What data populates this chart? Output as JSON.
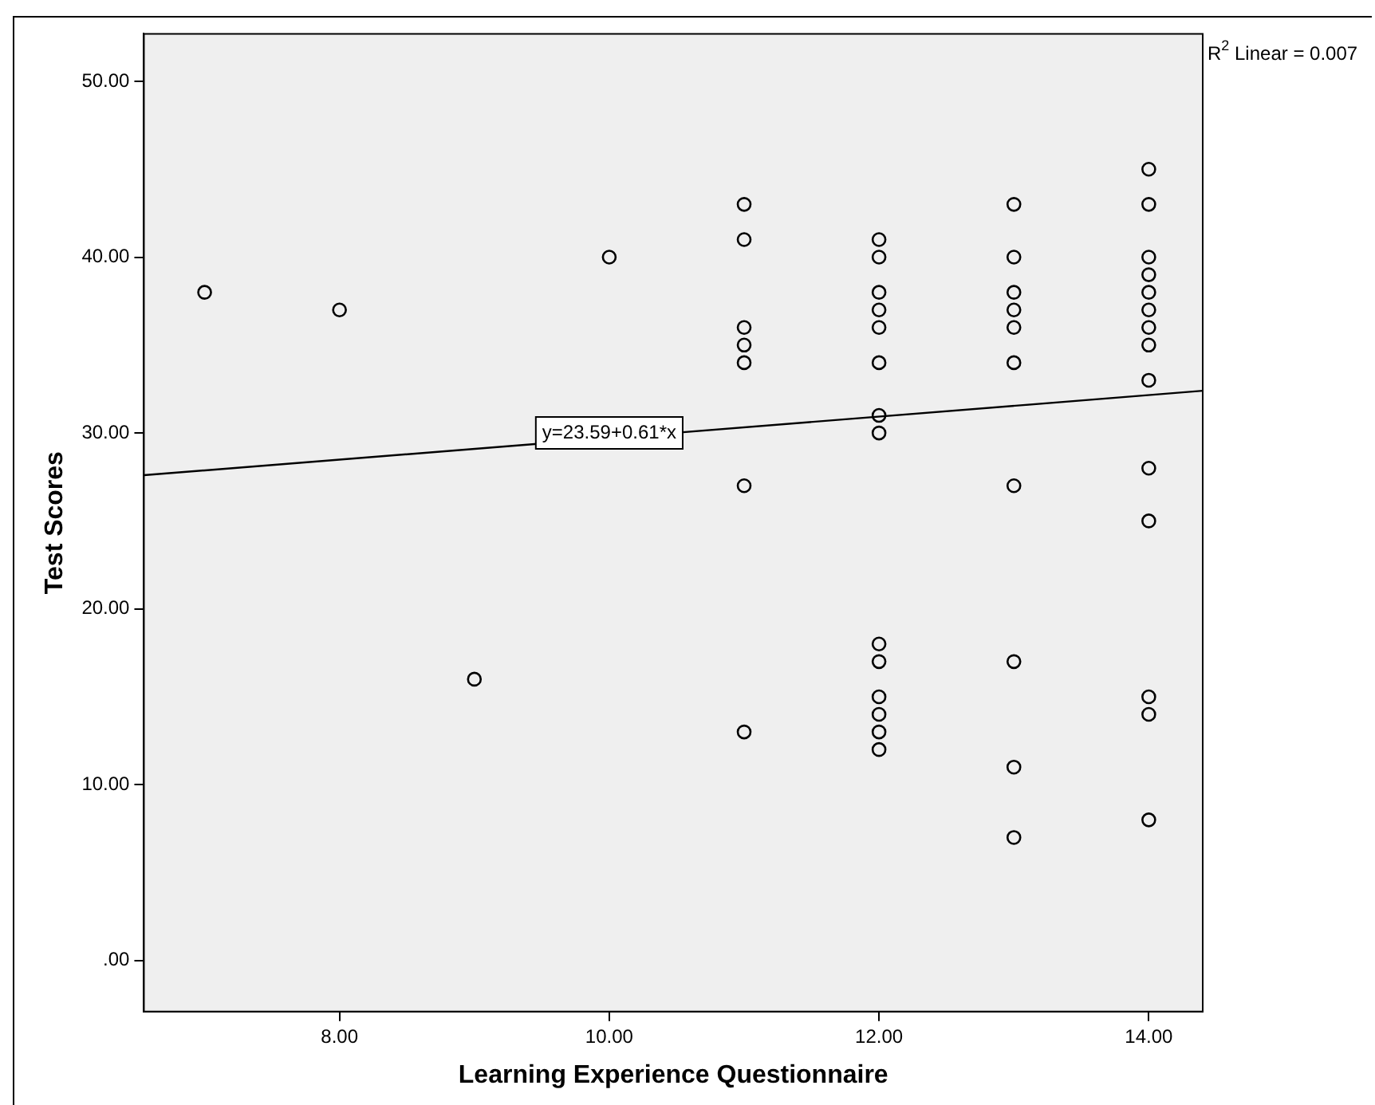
{
  "chart_data": {
    "type": "scatter",
    "xlabel": "Learning Experience Questionnaire",
    "ylabel": "Test Scores",
    "xlim": [
      6.55,
      14.4
    ],
    "ylim": [
      -2.9,
      52.7
    ],
    "xticks": [
      {
        "value": 8,
        "label": "8.00"
      },
      {
        "value": 10,
        "label": "10.00"
      },
      {
        "value": 12,
        "label": "12.00"
      },
      {
        "value": 14,
        "label": "14.00"
      }
    ],
    "yticks": [
      {
        "value": 0,
        "label": ".00"
      },
      {
        "value": 10,
        "label": "10.00"
      },
      {
        "value": 20,
        "label": "20.00"
      },
      {
        "value": 30,
        "label": "30.00"
      },
      {
        "value": 40,
        "label": "40.00"
      },
      {
        "value": 50,
        "label": "50.00"
      }
    ],
    "series": [
      {
        "color": "#000000",
        "marker": "circle",
        "x": [
          7,
          8,
          9,
          10,
          11,
          11,
          11,
          11,
          11,
          11,
          11,
          12,
          12,
          12,
          12,
          12,
          12,
          12,
          12,
          12,
          12,
          12,
          12,
          12,
          12,
          13,
          13,
          13,
          13,
          13,
          13,
          13,
          13,
          13,
          13,
          14,
          14,
          14,
          14,
          14,
          14,
          14,
          14,
          14,
          14,
          14,
          14,
          14,
          14
        ],
        "values": [
          38,
          37,
          16,
          40,
          43,
          41,
          36,
          35,
          34,
          27,
          13,
          41,
          40,
          38,
          37,
          36,
          34,
          31,
          30,
          18,
          17,
          15,
          14,
          13,
          12,
          43,
          40,
          38,
          37,
          36,
          34,
          27,
          17,
          11,
          7,
          45,
          43,
          40,
          39,
          38,
          37,
          36,
          35,
          33,
          28,
          25,
          15,
          14,
          8
        ]
      },
      {
        "type": "line",
        "color": "#000000",
        "marker": "none",
        "x": [
          6.55,
          14.4
        ],
        "values": [
          27.6,
          32.4
        ]
      }
    ],
    "annotations": [
      {
        "text": "y=23.59+0.61*x",
        "x": 10,
        "y": 30
      },
      "R$^{2}$ Linear = 0.007"
    ]
  }
}
